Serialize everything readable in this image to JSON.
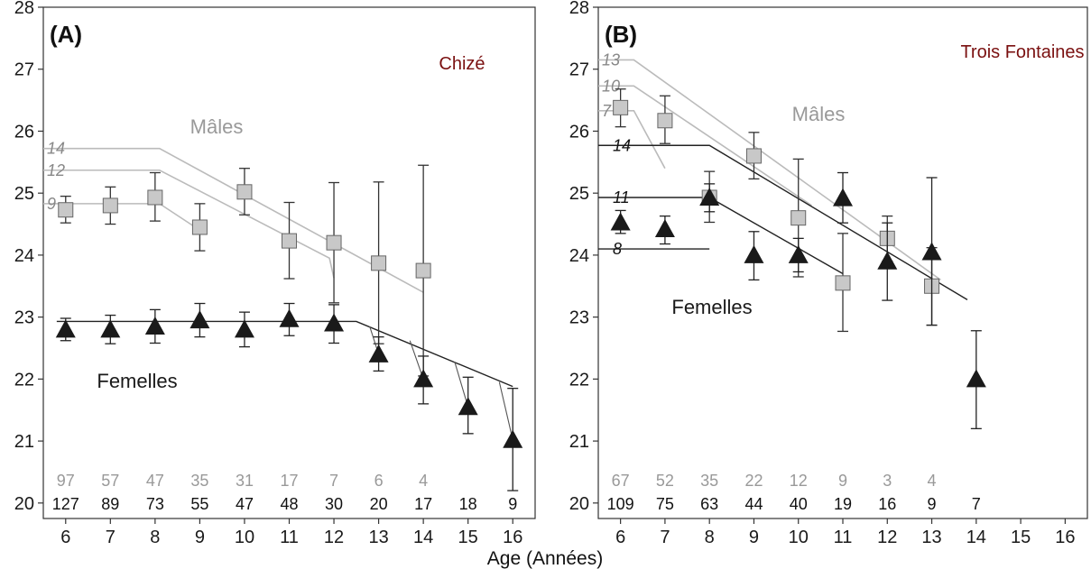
{
  "xlabel": "Age (Années)",
  "colors": {
    "males": "#999999",
    "males_fill": "#c8c8c8",
    "females": "#1a1a1a",
    "site": "#7a1010",
    "male_line": "#bbbbbb"
  },
  "chart_data": [
    {
      "type": "scatter",
      "panel": "(A)",
      "site": "Chizé",
      "xlim": [
        5.5,
        16.5
      ],
      "ylim": [
        19.75,
        28
      ],
      "x_ticks": [
        6,
        7,
        8,
        9,
        10,
        11,
        12,
        13,
        14,
        15,
        16
      ],
      "y_ticks": [
        20,
        21,
        22,
        23,
        24,
        25,
        26,
        27,
        28
      ],
      "males_label": "Mâles",
      "females_label": "Femelles",
      "males": [
        {
          "x": 6,
          "y": 24.73,
          "lo": 24.52,
          "hi": 24.95
        },
        {
          "x": 7,
          "y": 24.8,
          "lo": 24.5,
          "hi": 25.1
        },
        {
          "x": 8,
          "y": 24.93,
          "lo": 24.55,
          "hi": 25.33
        },
        {
          "x": 9,
          "y": 24.45,
          "lo": 24.07,
          "hi": 24.83
        },
        {
          "x": 10,
          "y": 25.02,
          "lo": 24.65,
          "hi": 25.4
        },
        {
          "x": 11,
          "y": 24.23,
          "lo": 23.62,
          "hi": 24.85
        },
        {
          "x": 12,
          "y": 24.2,
          "lo": 23.23,
          "hi": 25.17
        },
        {
          "x": 13,
          "y": 23.87,
          "lo": 22.57,
          "hi": 25.18
        },
        {
          "x": 14,
          "y": 23.75,
          "lo": 22.05,
          "hi": 25.45
        }
      ],
      "females": [
        {
          "x": 6,
          "y": 22.8,
          "lo": 22.62,
          "hi": 22.98
        },
        {
          "x": 7,
          "y": 22.8,
          "lo": 22.57,
          "hi": 23.03
        },
        {
          "x": 8,
          "y": 22.85,
          "lo": 22.58,
          "hi": 23.12
        },
        {
          "x": 9,
          "y": 22.95,
          "lo": 22.68,
          "hi": 23.22
        },
        {
          "x": 10,
          "y": 22.8,
          "lo": 22.52,
          "hi": 23.08
        },
        {
          "x": 11,
          "y": 22.97,
          "lo": 22.7,
          "hi": 23.22
        },
        {
          "x": 12,
          "y": 22.9,
          "lo": 22.58,
          "hi": 23.2
        },
        {
          "x": 13,
          "y": 22.4,
          "lo": 22.13,
          "hi": 22.68
        },
        {
          "x": 14,
          "y": 22.0,
          "lo": 21.6,
          "hi": 22.37
        },
        {
          "x": 15,
          "y": 21.55,
          "lo": 21.12,
          "hi": 22.03
        },
        {
          "x": 16,
          "y": 21.02,
          "lo": 20.2,
          "hi": 21.85
        }
      ],
      "male_cohort_lines": [
        {
          "label": "14",
          "points": [
            [
              5.5,
              25.72
            ],
            [
              8.1,
              25.72
            ],
            [
              14.0,
              23.4
            ]
          ]
        },
        {
          "label": "12",
          "points": [
            [
              5.5,
              25.37
            ],
            [
              8.1,
              25.37
            ],
            [
              11.9,
              23.95
            ],
            [
              12.0,
              23.63
            ]
          ]
        },
        {
          "label": "9",
          "points": [
            [
              5.5,
              24.83
            ],
            [
              8.1,
              24.83
            ],
            [
              8.9,
              24.45
            ]
          ]
        }
      ],
      "female_line": [
        [
          5.8,
          22.93
        ],
        [
          12.5,
          22.93
        ],
        [
          16.0,
          21.88
        ]
      ],
      "female_minor_lines": [
        [
          [
            12.8,
            22.85
          ],
          [
            13.0,
            22.4
          ]
        ],
        [
          [
            13.7,
            22.62
          ],
          [
            14.0,
            22.0
          ]
        ],
        [
          [
            14.7,
            22.28
          ],
          [
            15.0,
            21.55
          ]
        ],
        [
          [
            15.7,
            21.95
          ],
          [
            16.0,
            21.02
          ]
        ]
      ],
      "n_males": [
        "97",
        "57",
        "47",
        "35",
        "31",
        "17",
        "7",
        "6",
        "4"
      ],
      "n_females": [
        "127",
        "89",
        "73",
        "55",
        "47",
        "48",
        "30",
        "20",
        "17",
        "18",
        "9"
      ]
    },
    {
      "type": "scatter",
      "panel": "(B)",
      "site": "Trois Fontaines",
      "xlim": [
        5.5,
        16.5
      ],
      "ylim": [
        19.75,
        28
      ],
      "x_ticks": [
        6,
        7,
        8,
        9,
        10,
        11,
        12,
        13,
        14,
        15,
        16
      ],
      "y_ticks": [
        20,
        21,
        22,
        23,
        24,
        25,
        26,
        27,
        28
      ],
      "males_label": "Mâles",
      "females_label": "Femelles",
      "males": [
        {
          "x": 6,
          "y": 26.38,
          "lo": 26.07,
          "hi": 26.68
        },
        {
          "x": 7,
          "y": 26.17,
          "lo": 25.8,
          "hi": 26.57
        },
        {
          "x": 8,
          "y": 24.93,
          "lo": 24.53,
          "hi": 25.35
        },
        {
          "x": 9,
          "y": 25.6,
          "lo": 25.23,
          "hi": 25.98
        },
        {
          "x": 10,
          "y": 24.6,
          "lo": 23.65,
          "hi": 25.55
        },
        {
          "x": 11,
          "y": 23.55,
          "lo": 22.77,
          "hi": 24.35
        },
        {
          "x": 12,
          "y": 24.27,
          "lo": 23.9,
          "hi": 24.63
        },
        {
          "x": 13,
          "y": 23.5,
          "lo": 22.87,
          "hi": 24.12
        }
      ],
      "females": [
        {
          "x": 6,
          "y": 24.53,
          "lo": 24.35,
          "hi": 24.72
        },
        {
          "x": 7,
          "y": 24.42,
          "lo": 24.18,
          "hi": 24.63
        },
        {
          "x": 8,
          "y": 24.93,
          "lo": 24.7,
          "hi": 25.15
        },
        {
          "x": 9,
          "y": 24.0,
          "lo": 23.6,
          "hi": 24.38
        },
        {
          "x": 10,
          "y": 24.0,
          "lo": 23.73,
          "hi": 24.27
        },
        {
          "x": 11,
          "y": 24.92,
          "lo": 24.52,
          "hi": 25.33
        },
        {
          "x": 12,
          "y": 23.9,
          "lo": 23.27,
          "hi": 24.52
        },
        {
          "x": 13,
          "y": 24.05,
          "lo": 22.87,
          "hi": 25.25
        },
        {
          "x": 14,
          "y": 22.0,
          "lo": 21.2,
          "hi": 22.78
        }
      ],
      "male_cohort_lines": [
        {
          "label": "13",
          "points": [
            [
              5.5,
              27.15
            ],
            [
              6.3,
              27.15
            ],
            [
              13.2,
              23.6
            ]
          ]
        },
        {
          "label": "10",
          "points": [
            [
              5.5,
              26.73
            ],
            [
              6.3,
              26.73
            ],
            [
              10.3,
              24.8
            ]
          ]
        },
        {
          "label": "7",
          "points": [
            [
              5.5,
              26.33
            ],
            [
              6.3,
              26.33
            ],
            [
              7.0,
              25.4
            ]
          ]
        }
      ],
      "female_cohort_lines": [
        {
          "label": "14",
          "points": [
            [
              5.5,
              25.77
            ],
            [
              8.0,
              25.77
            ],
            [
              13.8,
              23.28
            ]
          ]
        },
        {
          "label": "11",
          "points": [
            [
              5.5,
              24.93
            ],
            [
              8.0,
              24.93
            ],
            [
              11.0,
              23.7
            ]
          ]
        },
        {
          "label": "8",
          "points": [
            [
              5.5,
              24.1
            ],
            [
              8.0,
              24.1
            ]
          ]
        }
      ],
      "n_males": [
        "67",
        "52",
        "35",
        "22",
        "12",
        "9",
        "3",
        "4"
      ],
      "n_females": [
        "109",
        "75",
        "63",
        "44",
        "40",
        "19",
        "16",
        "9",
        "7"
      ]
    }
  ]
}
